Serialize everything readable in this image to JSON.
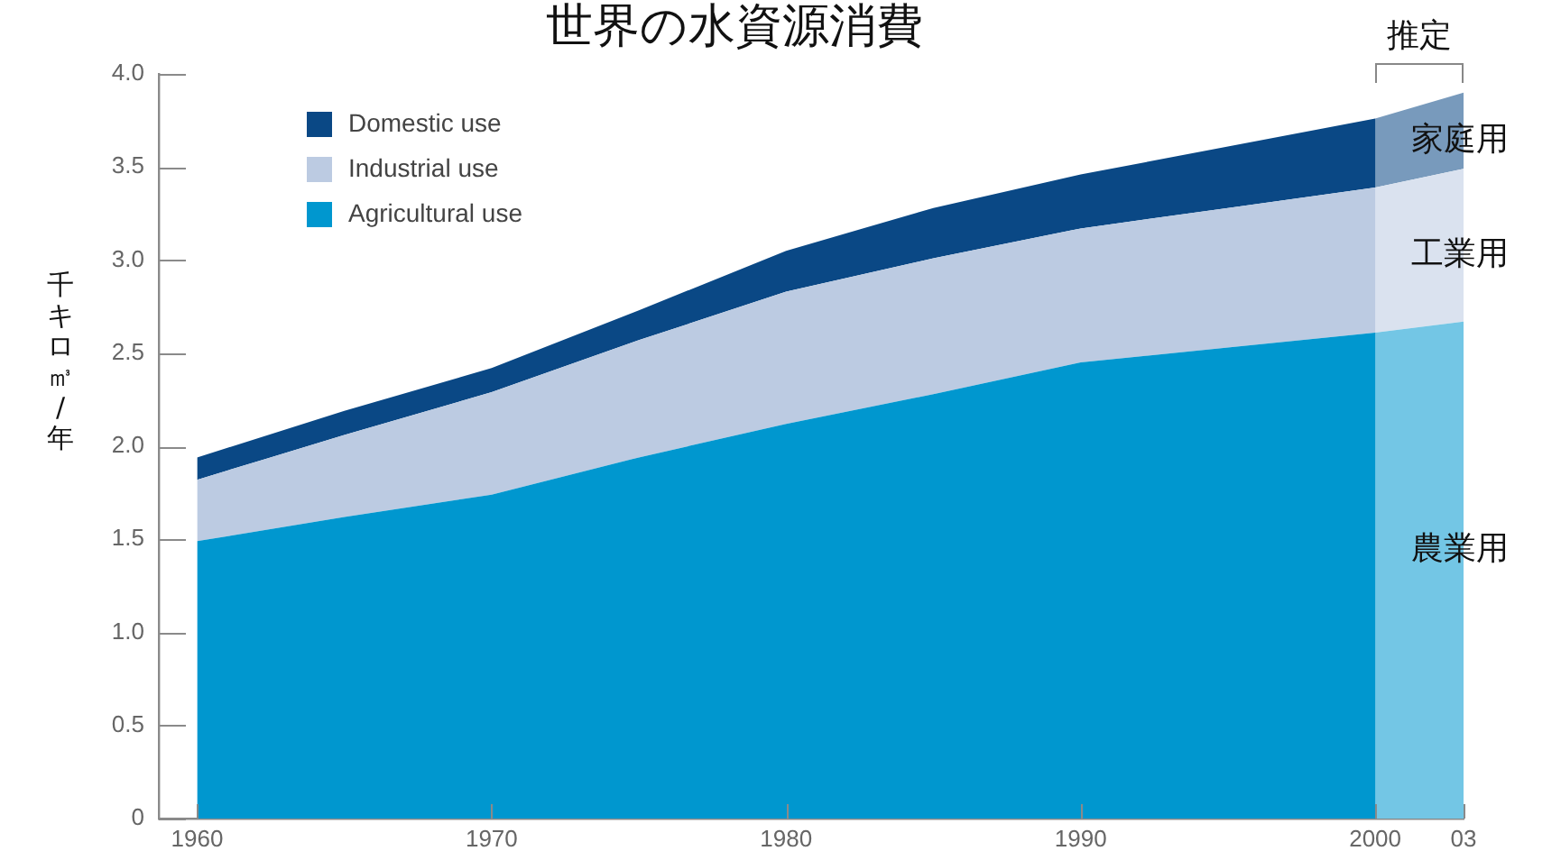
{
  "chart_data": {
    "type": "area",
    "title": "世界の水資源消費",
    "ylabel": "千キロ㎥/年",
    "stacked": true,
    "x": [
      1960,
      1965,
      1970,
      1975,
      1980,
      1985,
      1990,
      1995,
      2000,
      2003
    ],
    "series": [
      {
        "name": "Agricultural use",
        "color": "#0097cf",
        "values": [
          1.49,
          1.62,
          1.74,
          1.94,
          2.12,
          2.28,
          2.45,
          2.53,
          2.61,
          2.67
        ]
      },
      {
        "name": "Industrial use",
        "color": "#bccbe2",
        "values": [
          0.33,
          0.44,
          0.55,
          0.63,
          0.71,
          0.73,
          0.72,
          0.75,
          0.78,
          0.82
        ]
      },
      {
        "name": "Domestic use",
        "color": "#0a4885",
        "values": [
          0.12,
          0.13,
          0.13,
          0.16,
          0.22,
          0.27,
          0.29,
          0.33,
          0.37,
          0.41
        ]
      }
    ],
    "xlim": [
      1958.7,
      2003
    ],
    "xticks": [
      1960,
      1970,
      1980,
      1990,
      2000,
      {
        "value": 2003,
        "label": "03"
      }
    ],
    "ylim": [
      0,
      4
    ],
    "yticks": [
      0,
      0.5,
      {
        "value": 1,
        "label": "1.0"
      },
      1.5,
      {
        "value": 2,
        "label": "2.0"
      },
      2.5,
      {
        "value": 3,
        "label": "3.0"
      },
      3.5,
      {
        "value": 4,
        "label": "4.0"
      }
    ],
    "legend": "top left",
    "bands": [
      {
        "axis": "x",
        "from": 2000,
        "to": 2003,
        "label": "推定"
      }
    ],
    "annotations": [
      "家庭用",
      "工業用",
      "農業用"
    ]
  }
}
